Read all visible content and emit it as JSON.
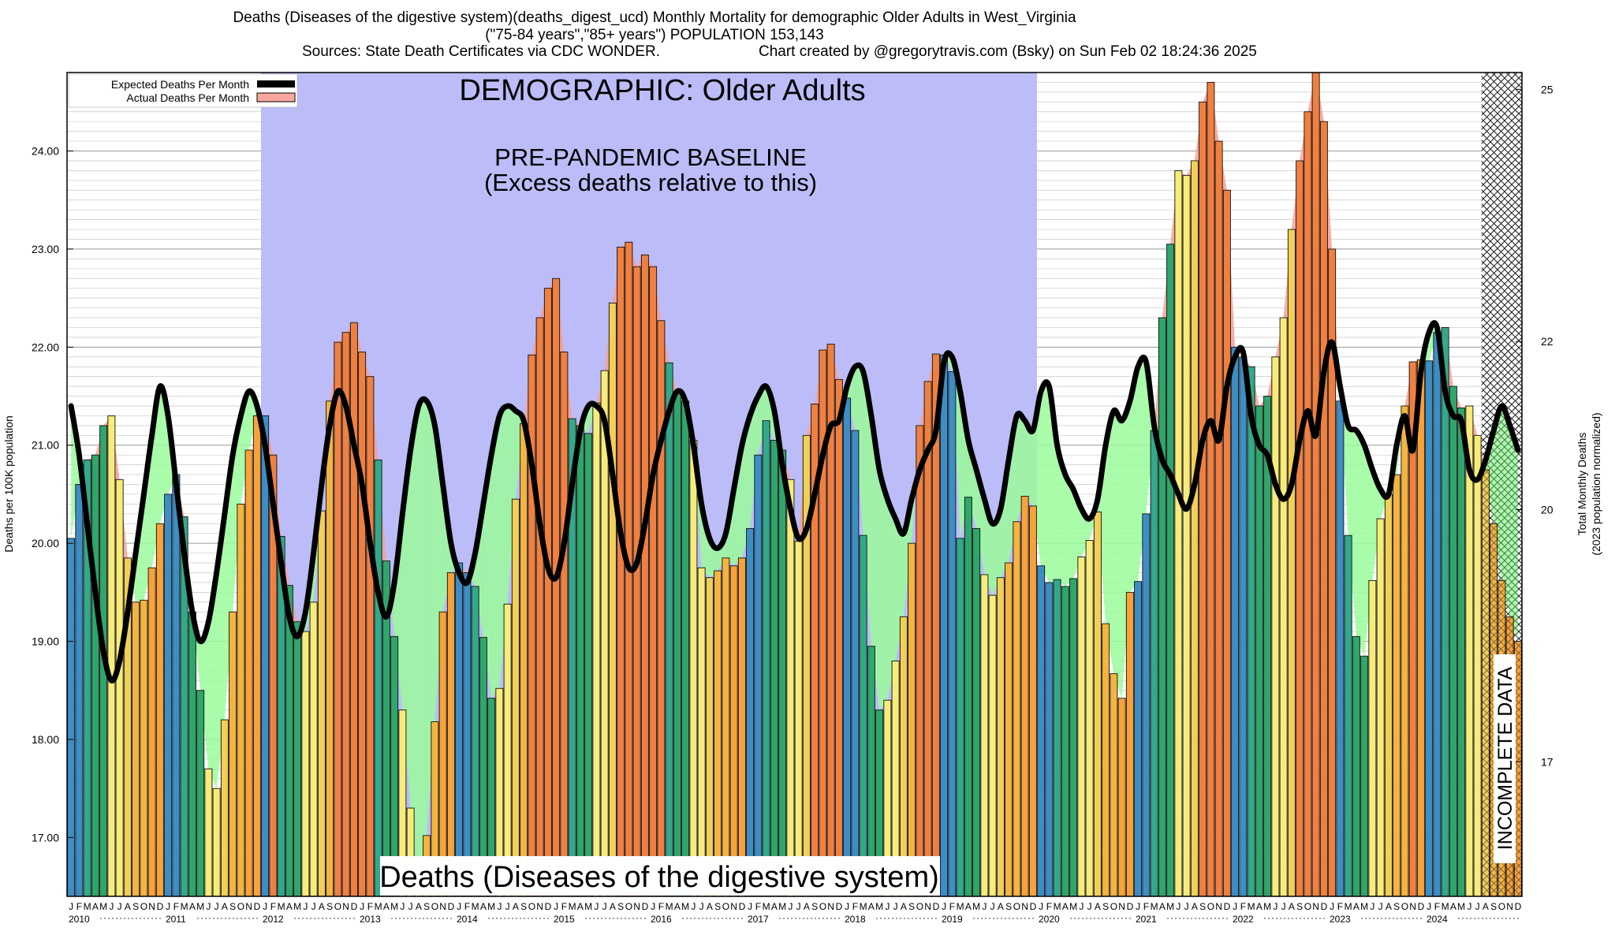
{
  "header": {
    "line1": "Deaths (Diseases of the digestive system)(deaths_digest_ucd) Monthly Mortality for demographic Older Adults in West_Virginia",
    "line2": "(\"75-84 years\",\"85+ years\") POPULATION 153,143",
    "sources": "Sources: State Death Certificates via CDC WONDER.",
    "credit": "Chart created by @gregorytravis.com (Bsky) on Sun Feb 02 18:24:36 2025"
  },
  "chart_data": {
    "type": "bar",
    "title": "Deaths (Diseases of the digestive system)(deaths_digest_ucd) Monthly Mortality for demographic Older Adults in West_Virginia",
    "ylabel": "Deaths per 100K population",
    "y2label_line1": "Total Monthly Deaths",
    "y2label_line2": "(2023 population normalized)",
    "ylim": [
      16.4,
      24.8
    ],
    "y2lim": [
      15.4,
      25.2
    ],
    "yticks": [
      "17.00",
      "18.00",
      "19.00",
      "20.00",
      "21.00",
      "22.00",
      "23.00",
      "24.00"
    ],
    "y2ticks": [
      "17",
      "20",
      "22",
      "25"
    ],
    "legend": {
      "position": "top-left",
      "expected_label": "Expected Deaths Per Month",
      "actual_label": "Actual Deaths Per Month"
    },
    "annotations": {
      "demographic": "DEMOGRAPHIC: Older Adults",
      "baseline_title": "PRE-PANDEMIC BASELINE",
      "baseline_subtitle": "(Excess deaths relative to this)",
      "bottom_label": "Deaths (Diseases of the digestive system)",
      "incomplete": "INCOMPLETE DATA"
    },
    "baseline_years": [
      2012,
      2019
    ],
    "incomplete_from": "2024-08",
    "start_year": 2010,
    "years": [
      "2010",
      "2011",
      "2012",
      "2013",
      "2014",
      "2015",
      "2016",
      "2017",
      "2018",
      "2019",
      "2020",
      "2021",
      "2022",
      "2023",
      "2024"
    ],
    "month_letters": [
      "J",
      "F",
      "M",
      "A",
      "M",
      "J",
      "J",
      "A",
      "S",
      "O",
      "N",
      "D"
    ],
    "series": [
      {
        "name": "Actual Deaths Per Month",
        "values": [
          20.05,
          20.6,
          20.85,
          20.9,
          21.2,
          21.3,
          20.65,
          19.85,
          19.4,
          19.42,
          19.75,
          20.2,
          20.5,
          20.7,
          20.27,
          19.3,
          18.5,
          17.7,
          17.5,
          18.2,
          19.3,
          20.4,
          20.95,
          21.3,
          21.3,
          20.9,
          20.07,
          19.57,
          19.2,
          19.1,
          19.4,
          20.33,
          21.45,
          22.05,
          22.15,
          22.25,
          21.95,
          21.7,
          20.85,
          19.82,
          19.05,
          18.3,
          17.3,
          16.45,
          17.02,
          18.18,
          19.3,
          19.7,
          19.8,
          19.7,
          19.56,
          19.04,
          18.42,
          18.52,
          19.38,
          20.45,
          21.22,
          21.92,
          22.3,
          22.6,
          22.7,
          21.95,
          21.27,
          21.2,
          21.12,
          21.43,
          21.76,
          22.45,
          23.02,
          23.07,
          22.82,
          22.94,
          22.82,
          22.27,
          21.84,
          21.55,
          21.45,
          21.05,
          19.75,
          19.65,
          19.72,
          19.85,
          19.77,
          19.85,
          20.15,
          20.9,
          21.25,
          21.05,
          20.95,
          20.65,
          20.02,
          21.1,
          21.42,
          21.97,
          22.03,
          21.67,
          21.48,
          21.15,
          20.08,
          18.95,
          18.3,
          18.4,
          18.8,
          19.25,
          20.0,
          21.2,
          21.65,
          21.93,
          21.92,
          21.75,
          20.05,
          20.47,
          20.15,
          19.68,
          19.47,
          19.65,
          19.8,
          20.22,
          20.48,
          20.38,
          19.77,
          19.6,
          19.63,
          19.56,
          19.64,
          19.86,
          20.03,
          20.32,
          19.18,
          18.67,
          18.42,
          19.5,
          19.61,
          20.3,
          21.15,
          22.3,
          23.05,
          23.8,
          23.75,
          23.9,
          24.5,
          24.7,
          24.1,
          23.6,
          22.0,
          21.9,
          21.8,
          21.4,
          21.5,
          21.9,
          22.3,
          23.2,
          23.9,
          24.4,
          24.8,
          24.3,
          23.0,
          21.45,
          20.08,
          19.05,
          18.85,
          19.62,
          20.25,
          20.5,
          20.7,
          21.4,
          21.85,
          21.87,
          21.86,
          22.15,
          22.2,
          21.6,
          21.38,
          21.4,
          21.1,
          20.75,
          20.2,
          19.62,
          19.25,
          19.0
        ]
      },
      {
        "name": "Expected Deaths Per Month",
        "values": [
          21.4,
          20.9,
          20.2,
          19.5,
          18.9,
          18.6,
          18.8,
          19.3,
          19.9,
          20.5,
          21.1,
          21.6,
          21.3,
          20.6,
          19.9,
          19.3,
          19.0,
          19.2,
          19.7,
          20.3,
          20.9,
          21.3,
          21.55,
          21.4,
          21.0,
          20.4,
          19.8,
          19.25,
          19.05,
          19.3,
          19.9,
          20.6,
          21.2,
          21.55,
          21.4,
          21.0,
          20.6,
          20.0,
          19.5,
          19.25,
          19.6,
          20.3,
          20.95,
          21.4,
          21.45,
          21.2,
          20.6,
          20.0,
          19.7,
          19.6,
          19.9,
          20.4,
          20.9,
          21.3,
          21.4,
          21.35,
          21.25,
          20.8,
          20.2,
          19.75,
          19.65,
          20.0,
          20.6,
          21.15,
          21.4,
          21.4,
          21.25,
          20.7,
          20.1,
          19.75,
          19.8,
          20.2,
          20.7,
          21.05,
          21.35,
          21.55,
          21.45,
          21.0,
          20.4,
          20.05,
          19.95,
          20.1,
          20.55,
          21.0,
          21.3,
          21.5,
          21.6,
          21.35,
          20.8,
          20.35,
          20.05,
          20.15,
          20.5,
          20.9,
          21.2,
          21.25,
          21.6,
          21.8,
          21.75,
          21.3,
          20.75,
          20.45,
          20.25,
          20.1,
          20.45,
          20.75,
          20.95,
          21.15,
          21.85,
          21.9,
          21.55,
          21.05,
          20.75,
          20.45,
          20.2,
          20.35,
          20.85,
          21.3,
          21.25,
          21.15,
          21.55,
          21.6,
          21.0,
          20.7,
          20.55,
          20.35,
          20.25,
          20.45,
          21.0,
          21.35,
          21.25,
          21.45,
          21.8,
          21.85,
          21.2,
          20.85,
          20.7,
          20.5,
          20.35,
          20.6,
          21.05,
          21.25,
          21.05,
          21.6,
          21.9,
          21.95,
          21.3,
          21.0,
          20.9,
          20.6,
          20.45,
          20.6,
          21.05,
          21.35,
          21.1,
          21.75,
          22.05,
          21.6,
          21.2,
          21.15,
          21.0,
          20.75,
          20.55,
          20.5,
          21.0,
          21.3,
          20.95,
          21.75,
          22.15,
          22.2,
          21.55,
          21.3,
          21.25,
          20.75,
          20.65,
          20.85,
          21.15,
          21.4,
          21.2,
          20.95
        ]
      }
    ]
  }
}
